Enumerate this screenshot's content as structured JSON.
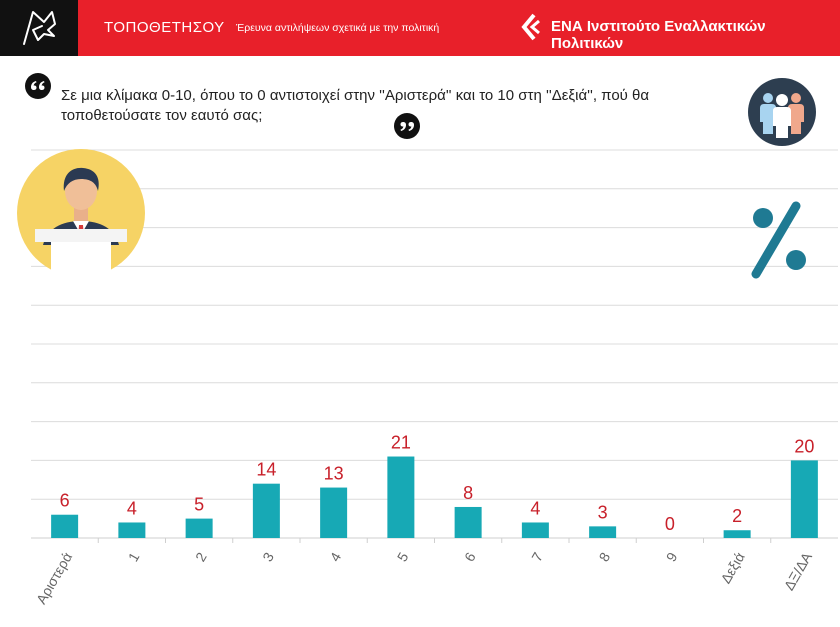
{
  "header": {
    "brand": "ΤΟΠΟΘΕΤΗΣΟΥ",
    "subtitle": "Έρευνα αντιλήψεων σχετικά με την πολιτική",
    "org_name": "ΕΝΑ Ινστιτούτο Εναλλακτικών Πολιτικών"
  },
  "question": "Σε μια κλίμακα 0-10, όπου το 0 αντιστοιχεί στην ''Αριστερά'' και το 10 στη ''Δεξιά'', πού θα τοποθετούσατε τον εαυτό σας;",
  "colors": {
    "header_red": "#e8202a",
    "bar_teal": "#17a9b5",
    "label_red": "#c8202a",
    "gridline": "#dcdcdc",
    "percent_teal": "#1f7a93"
  },
  "icons": [
    "quote-open-icon",
    "quote-close-icon",
    "people-icon",
    "speaker-podium-icon",
    "percent-icon",
    "ena-logo-icon",
    "flag-logo-icon"
  ],
  "chart_data": {
    "type": "bar",
    "categories": [
      "Αριστερά",
      "1",
      "2",
      "3",
      "4",
      "5",
      "6",
      "7",
      "8",
      "9",
      "Δεξιά",
      "ΔΞ/ΔΑ"
    ],
    "values": [
      6,
      4,
      5,
      14,
      13,
      21,
      8,
      4,
      3,
      0,
      2,
      20
    ],
    "ylim": [
      0,
      100
    ],
    "grid": true,
    "legend": "none"
  }
}
